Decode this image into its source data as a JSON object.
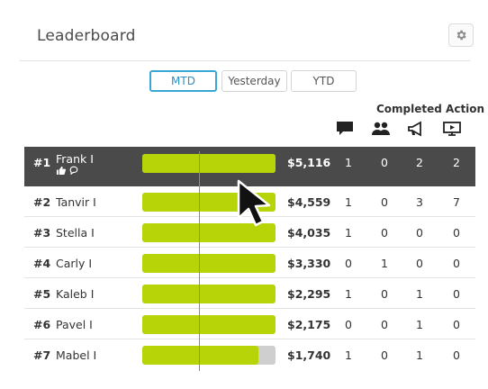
{
  "header": {
    "title": "Leaderboard"
  },
  "tabs": [
    {
      "label": "MTD",
      "active": true
    },
    {
      "label": "Yesterday",
      "active": false
    },
    {
      "label": "YTD",
      "active": false
    }
  ],
  "columns": {
    "completed_label": "Completed Action",
    "icons": [
      "comment-icon",
      "users-icon",
      "megaphone-icon",
      "presentation-icon"
    ]
  },
  "colors": {
    "bar": "#b7d408",
    "bar_track": "#cfcfcf",
    "highlight_row": "#4a4a4a",
    "tab_active": "#39a7d6"
  },
  "rows": [
    {
      "rank": "#1",
      "name": "Frank I",
      "amount": "$5,116",
      "fill": 1.0,
      "actions": [
        "1",
        "0",
        "2",
        "2"
      ],
      "highlight": true,
      "subicons": [
        "thumbs-up-icon",
        "comment-icon"
      ]
    },
    {
      "rank": "#2",
      "name": "Tanvir I",
      "amount": "$4,559",
      "fill": 1.0,
      "actions": [
        "1",
        "0",
        "3",
        "7"
      ]
    },
    {
      "rank": "#3",
      "name": "Stella I",
      "amount": "$4,035",
      "fill": 1.0,
      "actions": [
        "1",
        "0",
        "0",
        "0"
      ]
    },
    {
      "rank": "#4",
      "name": "Carly I",
      "amount": "$3,330",
      "fill": 1.0,
      "actions": [
        "0",
        "1",
        "0",
        "0"
      ]
    },
    {
      "rank": "#5",
      "name": "Kaleb I",
      "amount": "$2,295",
      "fill": 1.0,
      "actions": [
        "1",
        "0",
        "1",
        "0"
      ]
    },
    {
      "rank": "#6",
      "name": "Pavel I",
      "amount": "$2,175",
      "fill": 1.0,
      "actions": [
        "0",
        "0",
        "1",
        "0"
      ]
    },
    {
      "rank": "#7",
      "name": "Mabel I",
      "amount": "$1,740",
      "fill": 0.87,
      "actions": [
        "1",
        "0",
        "1",
        "0"
      ]
    }
  ]
}
